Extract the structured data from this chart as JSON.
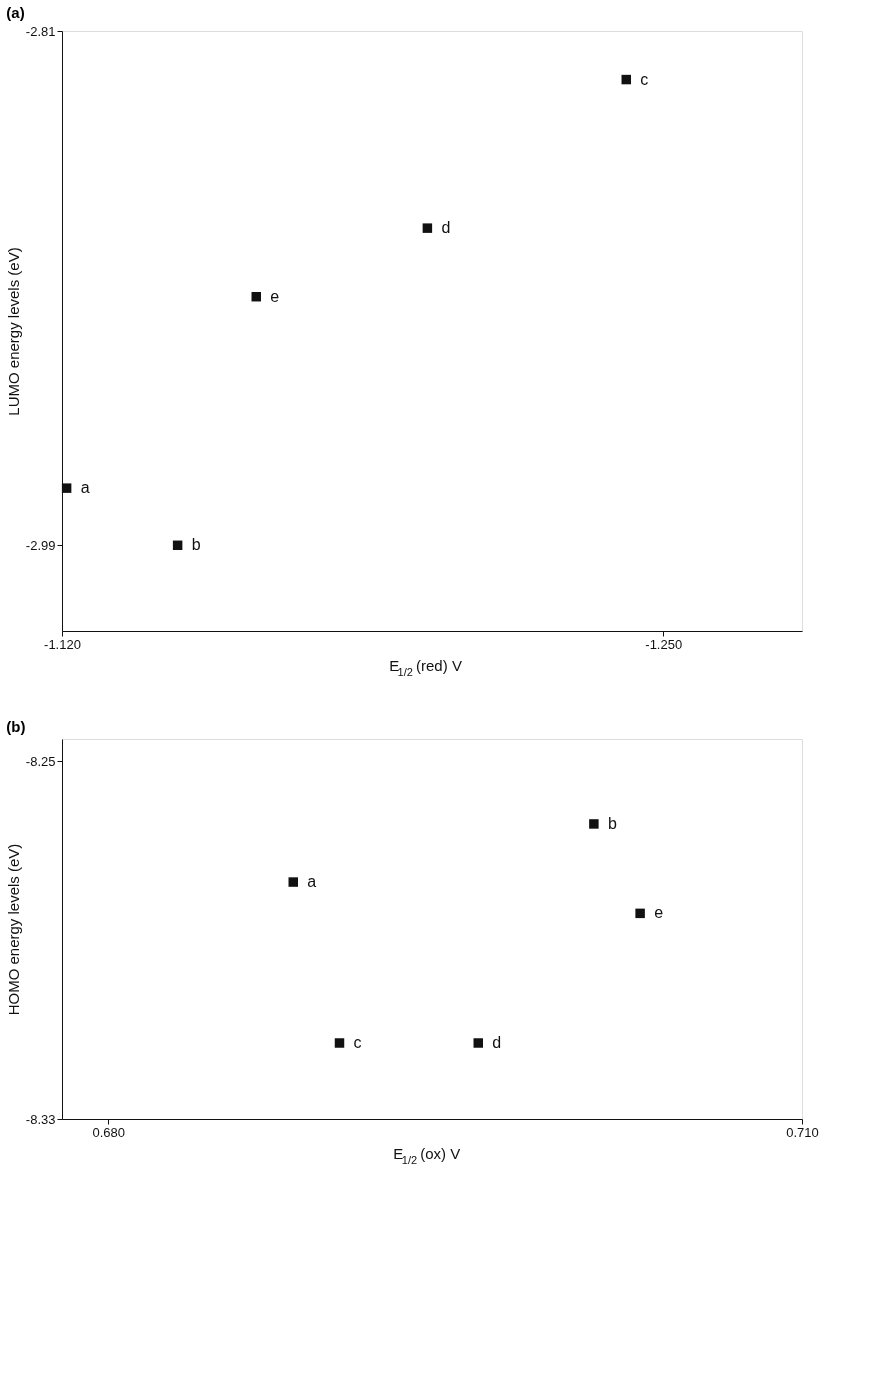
{
  "chart_data": [
    {
      "type": "scatter",
      "title": "(a)",
      "xlabel": "E$_{1/2}$(red) V",
      "ylabel": "LUMO energy levels (eV)",
      "marker": "square",
      "grid": false,
      "xlim": [
        -1.12,
        -1.28
      ],
      "xticks": [
        {
          "value": -1.12,
          "label": "-1.120"
        },
        {
          "value": -1.25,
          "label": "-1.250"
        }
      ],
      "ylim": [
        -3.02,
        -2.81
      ],
      "yticks": [
        {
          "value": -2.99,
          "label": "-2.99"
        },
        {
          "value": -2.81,
          "label": "-2.81"
        }
      ],
      "series": [
        {
          "color": "#111111",
          "x": [
            -1.121,
            -1.145,
            -1.162,
            -1.199,
            -1.242
          ],
          "values": [
            -2.97,
            -2.99,
            -2.903,
            -2.879,
            -2.827
          ]
        }
      ],
      "annotations": [
        {
          "text": "a",
          "x": -1.121,
          "y": -2.97
        },
        {
          "text": "b",
          "x": -1.145,
          "y": -2.99
        },
        {
          "text": "e",
          "x": -1.162,
          "y": -2.903
        },
        {
          "text": "d",
          "x": -1.199,
          "y": -2.879
        },
        {
          "text": "c",
          "x": -1.242,
          "y": -2.827
        }
      ]
    },
    {
      "type": "scatter",
      "title": "(b)",
      "xlabel": "E$_{1/2}$(ox) V",
      "ylabel": "HOMO energy levels (eV)",
      "marker": "square",
      "grid": false,
      "xlim": [
        0.678,
        0.71
      ],
      "xticks": [
        {
          "value": 0.68,
          "label": "0.680"
        },
        {
          "value": 0.71,
          "label": "0.710"
        }
      ],
      "ylim": [
        -8.33,
        -8.245
      ],
      "yticks": [
        {
          "value": -8.33,
          "label": "-8.33"
        },
        {
          "value": -8.25,
          "label": "-8.25"
        }
      ],
      "series": [
        {
          "color": "#111111",
          "x": [
            0.688,
            0.701,
            0.69,
            0.696,
            0.703
          ],
          "values": [
            -8.277,
            -8.264,
            -8.313,
            -8.313,
            -8.284
          ]
        }
      ],
      "annotations": [
        {
          "text": "a",
          "x": 0.688,
          "y": -8.277
        },
        {
          "text": "b",
          "x": 0.701,
          "y": -8.264
        },
        {
          "text": "c",
          "x": 0.69,
          "y": -8.313
        },
        {
          "text": "d",
          "x": 0.696,
          "y": -8.313
        },
        {
          "text": "e",
          "x": 0.703,
          "y": -8.284
        }
      ]
    }
  ]
}
